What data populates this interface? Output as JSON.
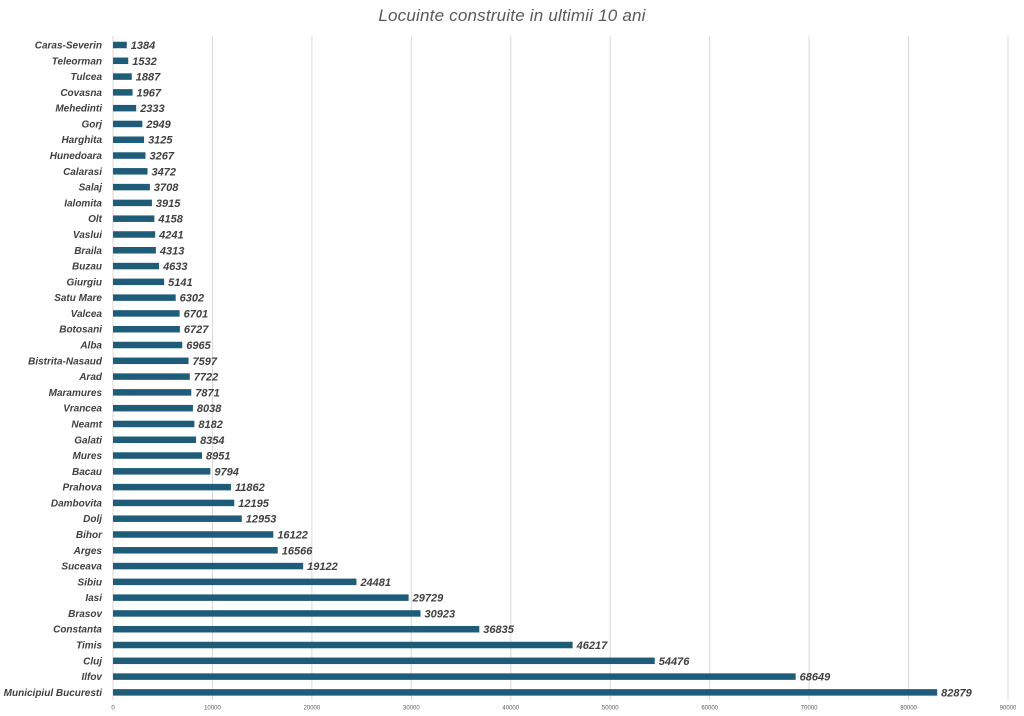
{
  "chart_data": {
    "type": "bar",
    "orientation": "horizontal",
    "title": "Locuinte construite in ultimii 10 ani",
    "xlabel": "",
    "ylabel": "",
    "xlim": [
      0,
      90000
    ],
    "xticks": [
      0,
      10000,
      20000,
      30000,
      40000,
      50000,
      60000,
      70000,
      80000,
      90000
    ],
    "grid": true,
    "bar_color": "#1F5C7A",
    "categories": [
      "Caras-Severin",
      "Teleorman",
      "Tulcea",
      "Covasna",
      "Mehedinti",
      "Gorj",
      "Harghita",
      "Hunedoara",
      "Calarasi",
      "Salaj",
      "Ialomita",
      "Olt",
      "Vaslui",
      "Braila",
      "Buzau",
      "Giurgiu",
      "Satu Mare",
      "Valcea",
      "Botosani",
      "Alba",
      "Bistrita-Nasaud",
      "Arad",
      "Maramures",
      "Vrancea",
      "Neamt",
      "Galati",
      "Mures",
      "Bacau",
      "Prahova",
      "Dambovita",
      "Dolj",
      "Bihor",
      "Arges",
      "Suceava",
      "Sibiu",
      "Iasi",
      "Brasov",
      "Constanta",
      "Timis",
      "Cluj",
      "Ilfov",
      "Municipiul Bucuresti"
    ],
    "values": [
      1384,
      1532,
      1887,
      1967,
      2333,
      2949,
      3125,
      3267,
      3472,
      3708,
      3915,
      4158,
      4241,
      4313,
      4633,
      5141,
      6302,
      6701,
      6727,
      6965,
      7597,
      7722,
      7871,
      8038,
      8182,
      8354,
      8951,
      9794,
      11862,
      12195,
      12953,
      16122,
      16566,
      19122,
      24481,
      29729,
      30923,
      36835,
      46217,
      54476,
      68649,
      82879
    ]
  }
}
